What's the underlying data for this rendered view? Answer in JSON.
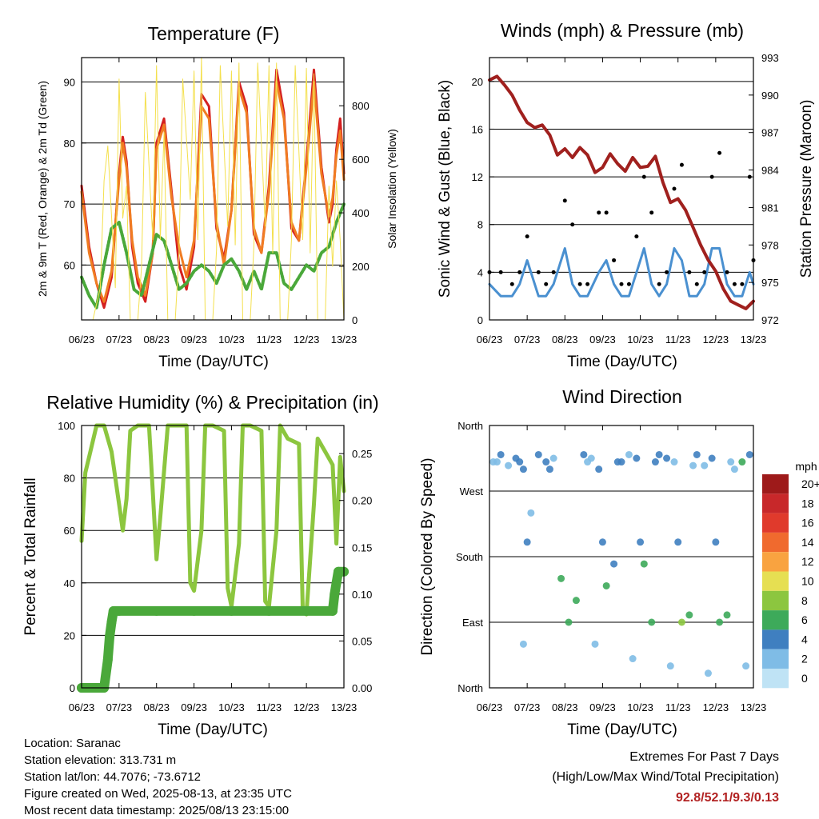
{
  "chart_data": [
    {
      "type": "line",
      "title": "Temperature (F)",
      "xlabel": "Time (Day/UTC)",
      "ylabel": "2m & 9m T (Red, Orange) & 2m Td (Green)",
      "y2label": "Solar Insolation (Yellow)",
      "xticks": [
        "06/23",
        "07/23",
        "08/23",
        "09/23",
        "10/23",
        "11/23",
        "12/23",
        "13/23"
      ],
      "ylim": [
        51,
        94
      ],
      "yticks": [
        "60",
        "70",
        "80",
        "90"
      ],
      "y2lim": [
        0,
        980
      ],
      "y2ticks": [
        "0",
        "200",
        "400",
        "600",
        "800"
      ],
      "series": [
        {
          "name": "2m T",
          "color": "#d42020",
          "x": [
            6.0,
            6.2,
            6.4,
            6.6,
            6.8,
            7.0,
            7.1,
            7.2,
            7.35,
            7.5,
            7.7,
            7.9,
            8.0,
            8.2,
            8.4,
            8.6,
            8.8,
            9.0,
            9.2,
            9.4,
            9.6,
            9.8,
            10.0,
            10.2,
            10.4,
            10.6,
            10.8,
            11.0,
            11.2,
            11.4,
            11.6,
            11.8,
            12.0,
            12.2,
            12.4,
            12.6,
            12.7,
            12.8,
            12.9,
            13.0
          ],
          "y": [
            73,
            63,
            57,
            53,
            58,
            75,
            81,
            77,
            63,
            57,
            54,
            62,
            80,
            84,
            72,
            60,
            56,
            63,
            88,
            86,
            66,
            61,
            69,
            90,
            86,
            65,
            62,
            73,
            92,
            85,
            66,
            64,
            77,
            92,
            76,
            67,
            70,
            79,
            84,
            75
          ]
        },
        {
          "name": "9m T",
          "color": "#f07c22",
          "x": [
            6.0,
            6.2,
            6.4,
            6.6,
            6.8,
            7.0,
            7.1,
            7.2,
            7.35,
            7.5,
            7.7,
            7.9,
            8.0,
            8.2,
            8.4,
            8.6,
            8.8,
            9.0,
            9.2,
            9.4,
            9.6,
            9.8,
            10.0,
            10.2,
            10.4,
            10.6,
            10.8,
            11.0,
            11.2,
            11.4,
            11.6,
            11.8,
            12.0,
            12.2,
            12.4,
            12.6,
            12.7,
            12.8,
            12.9,
            13.0
          ],
          "y": [
            72,
            62,
            57,
            54,
            59,
            74,
            80,
            76,
            64,
            58,
            55,
            62,
            79,
            83,
            71,
            63,
            58,
            64,
            86,
            84,
            67,
            60,
            69,
            89,
            85,
            66,
            62,
            72,
            90,
            84,
            67,
            64,
            76,
            90,
            75,
            68,
            71,
            78,
            82,
            74
          ]
        },
        {
          "name": "2m Td",
          "color": "#4aa83a",
          "x": [
            6.0,
            6.2,
            6.4,
            6.6,
            6.8,
            7.0,
            7.2,
            7.4,
            7.6,
            7.8,
            8.0,
            8.2,
            8.4,
            8.6,
            8.8,
            9.0,
            9.2,
            9.4,
            9.6,
            9.8,
            10.0,
            10.2,
            10.4,
            10.6,
            10.8,
            11.0,
            11.2,
            11.4,
            11.6,
            11.8,
            12.0,
            12.2,
            12.4,
            12.6,
            12.8,
            13.0
          ],
          "y": [
            58,
            55,
            53,
            60,
            66,
            67,
            62,
            56,
            55,
            60,
            65,
            64,
            60,
            56,
            57,
            59,
            60,
            59,
            57,
            60,
            61,
            59,
            56,
            59,
            56,
            62,
            62,
            57,
            56,
            58,
            60,
            59,
            62,
            63,
            67,
            70
          ]
        },
        {
          "name": "Solar Insolation",
          "color": "#f4e04d",
          "axis": "y2",
          "x": [
            6.3,
            6.5,
            6.6,
            6.7,
            6.9,
            7.0,
            7.1,
            7.2,
            7.3,
            7.5,
            7.6,
            7.7,
            7.9,
            8.0,
            8.1,
            8.2,
            8.3,
            8.5,
            8.6,
            8.7,
            8.9,
            9.0,
            9.1,
            9.2,
            9.3,
            9.5,
            9.6,
            9.7,
            9.9,
            10.0,
            10.1,
            10.2,
            10.3,
            10.5,
            10.6,
            10.7,
            10.9,
            11.0,
            11.1,
            11.2,
            11.3,
            11.5,
            11.6,
            11.7,
            11.9,
            12.0,
            12.1,
            12.2,
            12.3,
            12.5,
            12.6,
            12.7,
            12.8,
            12.9,
            13.0
          ],
          "y": [
            0,
            120,
            520,
            650,
            120,
            900,
            380,
            500,
            0,
            0,
            200,
            850,
            300,
            950,
            300,
            700,
            0,
            0,
            250,
            900,
            450,
            930,
            300,
            980,
            0,
            0,
            260,
            950,
            350,
            930,
            280,
            960,
            0,
            0,
            280,
            960,
            350,
            950,
            250,
            960,
            0,
            0,
            300,
            950,
            300,
            940,
            250,
            920,
            0,
            0,
            500,
            200,
            520,
            300,
            0
          ]
        }
      ]
    },
    {
      "type": "line",
      "title": "Winds (mph) & Pressure (mb)",
      "xlabel": "Time (Day/UTC)",
      "ylabel": "Sonic Wind & Gust (Blue, Black)",
      "y2label": "Station Pressure (Maroon)",
      "xticks": [
        "06/23",
        "07/23",
        "08/23",
        "09/23",
        "10/23",
        "11/23",
        "12/23",
        "13/23"
      ],
      "ylim": [
        0,
        22
      ],
      "yticks": [
        "0",
        "4",
        "8",
        "12",
        "16",
        "20"
      ],
      "y2lim": [
        972,
        993
      ],
      "y2ticks": [
        "972",
        "975",
        "978",
        "981",
        "984",
        "987",
        "990",
        "993"
      ],
      "series": [
        {
          "name": "Sonic Wind",
          "color": "#4a90d0",
          "x": [
            6.0,
            6.3,
            6.6,
            6.8,
            7.0,
            7.3,
            7.5,
            7.7,
            8.0,
            8.2,
            8.4,
            8.6,
            8.9,
            9.1,
            9.3,
            9.5,
            9.7,
            9.9,
            10.1,
            10.3,
            10.5,
            10.7,
            10.9,
            11.1,
            11.3,
            11.5,
            11.7,
            11.9,
            12.1,
            12.3,
            12.5,
            12.7,
            12.9,
            13.0
          ],
          "y": [
            3,
            2,
            2,
            3,
            5,
            2,
            2,
            3,
            6,
            3,
            2,
            2,
            4,
            5,
            3,
            2,
            2,
            4,
            6,
            3,
            2,
            3,
            6,
            5,
            2,
            2,
            3,
            6,
            6,
            3,
            2,
            2,
            4,
            3
          ]
        },
        {
          "name": "Gust",
          "color": "#000000",
          "x": [
            6.0,
            6.3,
            6.6,
            6.8,
            7.0,
            7.3,
            7.5,
            7.7,
            8.0,
            8.2,
            8.4,
            8.6,
            8.9,
            9.1,
            9.3,
            9.5,
            9.7,
            9.9,
            10.1,
            10.3,
            10.5,
            10.7,
            10.9,
            11.1,
            11.3,
            11.5,
            11.7,
            11.9,
            12.1,
            12.3,
            12.5,
            12.7,
            12.9,
            13.0
          ],
          "y": [
            4,
            4,
            3,
            4,
            7,
            4,
            3,
            4,
            10,
            8,
            3,
            3,
            9,
            9,
            5,
            3,
            3,
            7,
            12,
            9,
            3,
            4,
            11,
            13,
            4,
            3,
            4,
            12,
            14,
            4,
            3,
            3,
            12,
            5
          ]
        },
        {
          "name": "Station Pressure",
          "color": "#a0201e",
          "axis": "y2",
          "x": [
            6.0,
            6.2,
            6.4,
            6.6,
            6.8,
            7.0,
            7.2,
            7.4,
            7.6,
            7.8,
            8.0,
            8.2,
            8.4,
            8.6,
            8.8,
            9.0,
            9.2,
            9.4,
            9.6,
            9.8,
            10.0,
            10.2,
            10.4,
            10.6,
            10.8,
            11.0,
            11.2,
            11.4,
            11.6,
            11.8,
            12.0,
            12.2,
            12.4,
            12.6,
            12.8,
            13.0
          ],
          "y": [
            991.2,
            991.5,
            990.8,
            990.0,
            988.8,
            987.8,
            987.4,
            987.6,
            986.8,
            985.2,
            985.7,
            985.0,
            985.8,
            985.2,
            983.8,
            984.2,
            985.3,
            984.5,
            983.9,
            985.0,
            984.2,
            984.3,
            985.1,
            983.0,
            981.4,
            981.7,
            980.8,
            979.4,
            978.0,
            976.8,
            975.9,
            974.5,
            973.5,
            973.2,
            972.9,
            973.5
          ]
        }
      ]
    },
    {
      "type": "line",
      "title": "Relative Humidity (%) & Precipitation (in)",
      "xlabel": "Time (Day/UTC)",
      "ylabel": "Percent & Total Rainfall",
      "xticks": [
        "06/23",
        "07/23",
        "08/23",
        "09/23",
        "10/23",
        "11/23",
        "12/23",
        "13/23"
      ],
      "ylim": [
        0,
        100
      ],
      "yticks": [
        "0",
        "20",
        "40",
        "60",
        "80",
        "100"
      ],
      "y2lim": [
        0,
        0.28
      ],
      "y2ticks": [
        "0.00",
        "0.05",
        "0.10",
        "0.15",
        "0.20",
        "0.25"
      ],
      "series": [
        {
          "name": "Relative Humidity",
          "color": "#8cc63f",
          "x": [
            6.0,
            6.1,
            6.2,
            6.4,
            6.6,
            6.8,
            7.0,
            7.1,
            7.2,
            7.3,
            7.5,
            7.8,
            7.9,
            8.0,
            8.1,
            8.3,
            8.5,
            8.8,
            8.9,
            9.0,
            9.2,
            9.3,
            9.5,
            9.8,
            9.9,
            10.0,
            10.2,
            10.3,
            10.5,
            10.8,
            10.9,
            11.0,
            11.2,
            11.3,
            11.5,
            11.8,
            11.9,
            12.0,
            12.2,
            12.3,
            12.5,
            12.7,
            12.8,
            12.9,
            13.0
          ],
          "y": [
            56,
            82,
            88,
            100,
            100,
            90,
            70,
            60,
            72,
            98,
            100,
            100,
            75,
            49,
            65,
            100,
            100,
            100,
            40,
            37,
            60,
            100,
            100,
            98,
            38,
            31,
            55,
            100,
            100,
            98,
            33,
            31,
            60,
            100,
            95,
            93,
            30,
            28,
            70,
            95,
            90,
            85,
            55,
            88,
            75
          ]
        },
        {
          "name": "Total Precipitation",
          "color": "#4aa83a",
          "axis": "y2",
          "x": [
            6.0,
            6.6,
            6.7,
            6.75,
            6.8,
            6.85,
            7.0,
            8.0,
            9.0,
            10.0,
            11.0,
            12.0,
            12.7,
            12.75,
            12.8,
            12.85,
            13.0
          ],
          "y": [
            0.0,
            0.0,
            0.03,
            0.055,
            0.07,
            0.082,
            0.082,
            0.082,
            0.082,
            0.082,
            0.082,
            0.082,
            0.082,
            0.1,
            0.112,
            0.124,
            0.124
          ]
        }
      ]
    },
    {
      "type": "scatter",
      "title": "Wind Direction",
      "xlabel": "Time (Day/UTC)",
      "ylabel": "Direction (Colored By Speed)",
      "xticks": [
        "06/23",
        "07/23",
        "08/23",
        "09/23",
        "10/23",
        "11/23",
        "12/23",
        "13/23"
      ],
      "ylim": [
        0,
        360
      ],
      "yticks": [
        "North",
        "East",
        "South",
        "West",
        "North"
      ],
      "colorbar": {
        "unit": "mph",
        "labels": [
          "20+",
          "18",
          "16",
          "14",
          "12",
          "10",
          "8",
          "6",
          "4",
          "2",
          "0"
        ],
        "colors": [
          "#9e1a1a",
          "#c8282a",
          "#e03a2c",
          "#f06a2e",
          "#f9a340",
          "#e6df52",
          "#8cc63f",
          "#3daa5a",
          "#3f7fc0",
          "#7fbce6",
          "#bfe3f5"
        ]
      },
      "series": [
        {
          "name": "Direction",
          "x": [
            6.1,
            6.3,
            6.5,
            6.7,
            6.9,
            7.1,
            7.3,
            7.5,
            7.7,
            7.9,
            8.1,
            8.3,
            8.5,
            8.7,
            8.9,
            9.1,
            9.3,
            9.5,
            9.7,
            9.9,
            10.1,
            10.3,
            10.5,
            10.7,
            10.9,
            11.1,
            11.3,
            11.5,
            11.7,
            11.9,
            12.1,
            12.3,
            12.5,
            12.7,
            12.9,
            6.2,
            6.8,
            7.6,
            8.6,
            9.4,
            10.4,
            11.4,
            12.4,
            7.0,
            9.0,
            10.0,
            11.0,
            12.0,
            6.9,
            8.8,
            9.8,
            10.8,
            11.8,
            12.8
          ],
          "y": [
            310,
            320,
            305,
            315,
            300,
            240,
            320,
            310,
            315,
            150,
            90,
            120,
            320,
            315,
            300,
            140,
            170,
            310,
            320,
            315,
            170,
            90,
            320,
            315,
            310,
            90,
            100,
            320,
            305,
            315,
            90,
            100,
            300,
            310,
            320,
            310,
            310,
            300,
            310,
            310,
            310,
            305,
            310,
            200,
            200,
            200,
            200,
            200,
            60,
            60,
            40,
            30,
            20,
            30
          ],
          "speed": [
            2,
            3,
            2,
            4,
            3,
            2,
            4,
            3,
            2,
            6,
            6,
            5,
            3,
            2,
            4,
            5,
            4,
            3,
            2,
            4,
            6,
            5,
            3,
            4,
            2,
            7,
            5,
            3,
            2,
            4,
            6,
            6,
            2,
            5,
            3,
            2,
            3,
            4,
            2,
            3,
            3,
            2,
            2,
            3,
            3,
            4,
            4,
            3,
            1,
            2,
            1,
            2,
            1,
            1
          ]
        }
      ]
    }
  ],
  "footer": {
    "location": "Location: Saranac",
    "elevation": "Station elevation: 313.731 m",
    "latlon": "Station lat/lon: 44.7076; -73.6712",
    "created": "Figure created on Wed, 2025-08-13, at 23:35 UTC",
    "recent": "Most recent data timestamp: 2025/08/13 23:15:00"
  },
  "extremes": {
    "title": "Extremes For Past 7 Days",
    "subtitle": "(High/Low/Max Wind/Total Precipitation)",
    "values": "92.8/52.1/9.3/0.13"
  }
}
